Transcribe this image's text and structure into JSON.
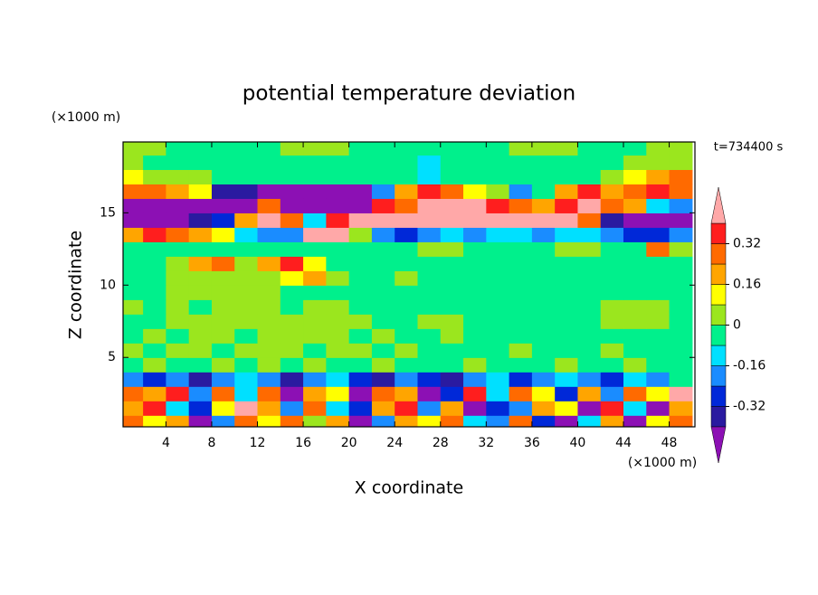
{
  "chart_data": {
    "type": "contour",
    "title": "potential temperature deviation",
    "x_label": "X coordinate",
    "y_label": "Z coordinate",
    "x_unit": "(×1000 m)",
    "y_unit": "(×1000 m)",
    "time_label": "t=734400 s",
    "xlim": [
      0.25,
      50.25
    ],
    "ylim": [
      0.2,
      19.9
    ],
    "xticks": [
      4,
      8,
      12,
      16,
      20,
      24,
      28,
      32,
      36,
      40,
      44,
      48
    ],
    "yticks": [
      5,
      10,
      15
    ],
    "x": [
      1,
      3,
      5,
      7,
      9,
      11,
      13,
      15,
      17,
      19,
      21,
      23,
      25,
      27,
      29,
      31,
      33,
      35,
      37,
      39,
      41,
      43,
      45,
      47,
      49
    ],
    "z": [
      0.5,
      1.5,
      2.5,
      3.5,
      4.5,
      5.5,
      6.5,
      7.5,
      8.5,
      9.5,
      10.5,
      11.5,
      12.5,
      13.5,
      14.5,
      15.5,
      16.5,
      17.5,
      18.5,
      19.5
    ],
    "values": [
      [
        0.3,
        0.1,
        0.2,
        -0.45,
        -0.2,
        0.25,
        0.1,
        0.3,
        0.05,
        0.2,
        -0.45,
        -0.2,
        0.2,
        0.1,
        0.3,
        -0.1,
        -0.2,
        0.25,
        -0.3,
        -0.45,
        -0.1,
        0.2,
        -0.45,
        0.1,
        0.3
      ],
      [
        0.2,
        0.35,
        -0.1,
        -0.3,
        0.1,
        0.45,
        0.2,
        -0.2,
        0.3,
        -0.1,
        -0.3,
        0.2,
        0.35,
        -0.2,
        0.2,
        -0.45,
        -0.3,
        -0.2,
        0.2,
        0.1,
        -0.45,
        0.35,
        -0.1,
        -0.45,
        0.2
      ],
      [
        0.3,
        0.2,
        0.35,
        -0.2,
        0.25,
        -0.1,
        0.3,
        -0.45,
        0.2,
        0.1,
        -0.45,
        0.3,
        0.2,
        -0.45,
        -0.3,
        0.35,
        -0.1,
        0.25,
        0.1,
        -0.3,
        0.2,
        -0.2,
        0.3,
        0.1,
        0.45
      ],
      [
        -0.2,
        -0.3,
        -0.2,
        -0.36,
        -0.2,
        -0.1,
        -0.2,
        -0.36,
        -0.2,
        -0.1,
        -0.3,
        -0.36,
        -0.2,
        -0.3,
        -0.36,
        -0.2,
        -0.1,
        -0.3,
        -0.2,
        -0.1,
        -0.2,
        -0.3,
        -0.1,
        -0.2,
        -0.05
      ],
      [
        -0.04,
        0.04,
        -0.04,
        -0.04,
        0.04,
        -0.04,
        0.04,
        -0.04,
        0.04,
        -0.04,
        -0.04,
        0.04,
        -0.04,
        -0.04,
        -0.04,
        0.04,
        -0.04,
        -0.04,
        -0.04,
        0.04,
        -0.04,
        -0.04,
        0.04,
        -0.04,
        -0.04
      ],
      [
        0.04,
        -0.04,
        0.04,
        0.04,
        -0.04,
        0.04,
        0.04,
        0.04,
        -0.04,
        0.04,
        0.04,
        -0.04,
        0.04,
        -0.04,
        -0.04,
        -0.04,
        -0.04,
        0.04,
        -0.04,
        -0.04,
        -0.04,
        0.04,
        -0.04,
        -0.04,
        -0.04
      ],
      [
        -0.04,
        0.04,
        -0.04,
        0.04,
        0.04,
        -0.04,
        0.04,
        0.04,
        0.04,
        0.04,
        -0.04,
        0.04,
        -0.04,
        -0.04,
        0.04,
        -0.04,
        -0.04,
        -0.04,
        -0.04,
        -0.04,
        -0.04,
        -0.04,
        -0.04,
        -0.04,
        -0.04
      ],
      [
        -0.04,
        -0.04,
        0.04,
        0.04,
        0.04,
        0.04,
        0.04,
        0.04,
        0.04,
        0.04,
        0.04,
        -0.04,
        -0.04,
        0.04,
        0.04,
        -0.04,
        -0.04,
        -0.04,
        -0.04,
        -0.04,
        -0.04,
        0.04,
        0.04,
        0.04,
        -0.04
      ],
      [
        0.04,
        -0.04,
        0.04,
        -0.04,
        0.04,
        0.04,
        0.04,
        -0.04,
        0.04,
        0.04,
        -0.04,
        -0.04,
        -0.04,
        -0.04,
        -0.04,
        -0.04,
        -0.04,
        -0.04,
        -0.04,
        -0.04,
        -0.04,
        0.04,
        0.04,
        0.04,
        -0.04
      ],
      [
        -0.04,
        -0.04,
        0.04,
        0.04,
        0.04,
        0.04,
        0.04,
        -0.04,
        -0.04,
        -0.04,
        -0.04,
        -0.04,
        -0.04,
        -0.04,
        -0.04,
        -0.04,
        -0.04,
        -0.04,
        -0.04,
        -0.04,
        -0.04,
        -0.04,
        -0.04,
        -0.04,
        -0.04
      ],
      [
        -0.04,
        -0.04,
        0.04,
        0.04,
        0.04,
        0.04,
        0.04,
        0.1,
        0.2,
        0.04,
        -0.04,
        -0.04,
        0.04,
        -0.04,
        -0.04,
        -0.04,
        -0.04,
        -0.04,
        -0.04,
        -0.04,
        -0.04,
        -0.04,
        -0.04,
        -0.04,
        -0.04
      ],
      [
        -0.04,
        -0.04,
        0.04,
        0.2,
        0.3,
        0.04,
        0.2,
        0.35,
        0.1,
        -0.04,
        -0.04,
        -0.04,
        -0.04,
        -0.04,
        -0.04,
        -0.04,
        -0.04,
        -0.04,
        -0.04,
        -0.04,
        -0.04,
        -0.04,
        -0.04,
        -0.04,
        -0.04
      ],
      [
        -0.04,
        -0.04,
        -0.04,
        -0.04,
        -0.04,
        -0.04,
        -0.04,
        -0.04,
        -0.04,
        -0.04,
        -0.04,
        -0.04,
        -0.04,
        0.04,
        0.04,
        -0.04,
        -0.04,
        -0.04,
        -0.04,
        0.04,
        0.04,
        -0.04,
        -0.04,
        0.3,
        0.04
      ],
      [
        0.2,
        0.35,
        0.3,
        0.2,
        0.1,
        -0.1,
        -0.2,
        -0.2,
        0.45,
        0.45,
        0.04,
        -0.2,
        -0.3,
        -0.2,
        -0.1,
        -0.2,
        -0.1,
        -0.1,
        -0.2,
        -0.1,
        -0.1,
        -0.2,
        -0.3,
        -0.3,
        -0.2
      ],
      [
        -0.45,
        -0.45,
        -0.45,
        -0.36,
        -0.3,
        0.2,
        0.45,
        0.3,
        -0.1,
        0.35,
        0.45,
        0.45,
        0.45,
        0.45,
        0.45,
        0.45,
        0.45,
        0.45,
        0.45,
        0.45,
        0.3,
        -0.36,
        -0.45,
        -0.45,
        -0.45
      ],
      [
        -0.45,
        -0.45,
        -0.45,
        -0.45,
        -0.45,
        -0.45,
        0.3,
        -0.45,
        -0.45,
        -0.45,
        -0.45,
        0.35,
        0.3,
        0.45,
        0.45,
        0.45,
        0.35,
        0.3,
        0.2,
        0.35,
        0.45,
        0.3,
        0.2,
        -0.1,
        -0.2
      ],
      [
        0.3,
        0.3,
        0.2,
        0.1,
        -0.36,
        -0.36,
        -0.45,
        -0.45,
        -0.45,
        -0.45,
        -0.45,
        -0.2,
        0.2,
        0.35,
        0.3,
        0.1,
        0.04,
        -0.2,
        -0.04,
        0.2,
        0.35,
        0.2,
        0.3,
        0.35,
        0.3
      ],
      [
        0.1,
        0.04,
        0.04,
        0.04,
        -0.04,
        -0.04,
        -0.04,
        -0.04,
        -0.04,
        -0.04,
        -0.04,
        -0.04,
        -0.04,
        -0.12,
        -0.04,
        -0.04,
        -0.04,
        -0.04,
        -0.04,
        -0.04,
        -0.04,
        0.04,
        0.1,
        0.2,
        0.25
      ],
      [
        0.04,
        -0.04,
        -0.04,
        -0.04,
        -0.04,
        -0.04,
        -0.04,
        -0.04,
        -0.04,
        -0.04,
        -0.04,
        -0.04,
        -0.04,
        -0.12,
        -0.04,
        -0.04,
        -0.04,
        -0.04,
        -0.04,
        -0.04,
        -0.04,
        -0.04,
        0.04,
        0.04,
        0.04
      ],
      [
        0.04,
        0.04,
        -0.04,
        -0.04,
        -0.04,
        -0.04,
        -0.04,
        0.04,
        0.04,
        0.04,
        -0.04,
        -0.04,
        -0.04,
        -0.04,
        -0.04,
        -0.04,
        -0.04,
        0.04,
        0.04,
        0.04,
        -0.04,
        -0.04,
        -0.04,
        0.04,
        0.04
      ]
    ],
    "levels": [
      -0.4,
      -0.32,
      -0.24,
      -0.16,
      -0.08,
      0,
      0.08,
      0.16,
      0.24,
      0.32,
      0.4
    ],
    "colors": [
      "#8c10b4",
      "#2a1aa0",
      "#0028d8",
      "#1a8cff",
      "#00e0ff",
      "#00f08c",
      "#9be61e",
      "#ffff00",
      "#ffa500",
      "#ff6a00",
      "#ff1e1e",
      "#ffa8a8"
    ],
    "colorbar_ticks": [
      0.32,
      0.16,
      0,
      -0.16,
      -0.32
    ]
  }
}
